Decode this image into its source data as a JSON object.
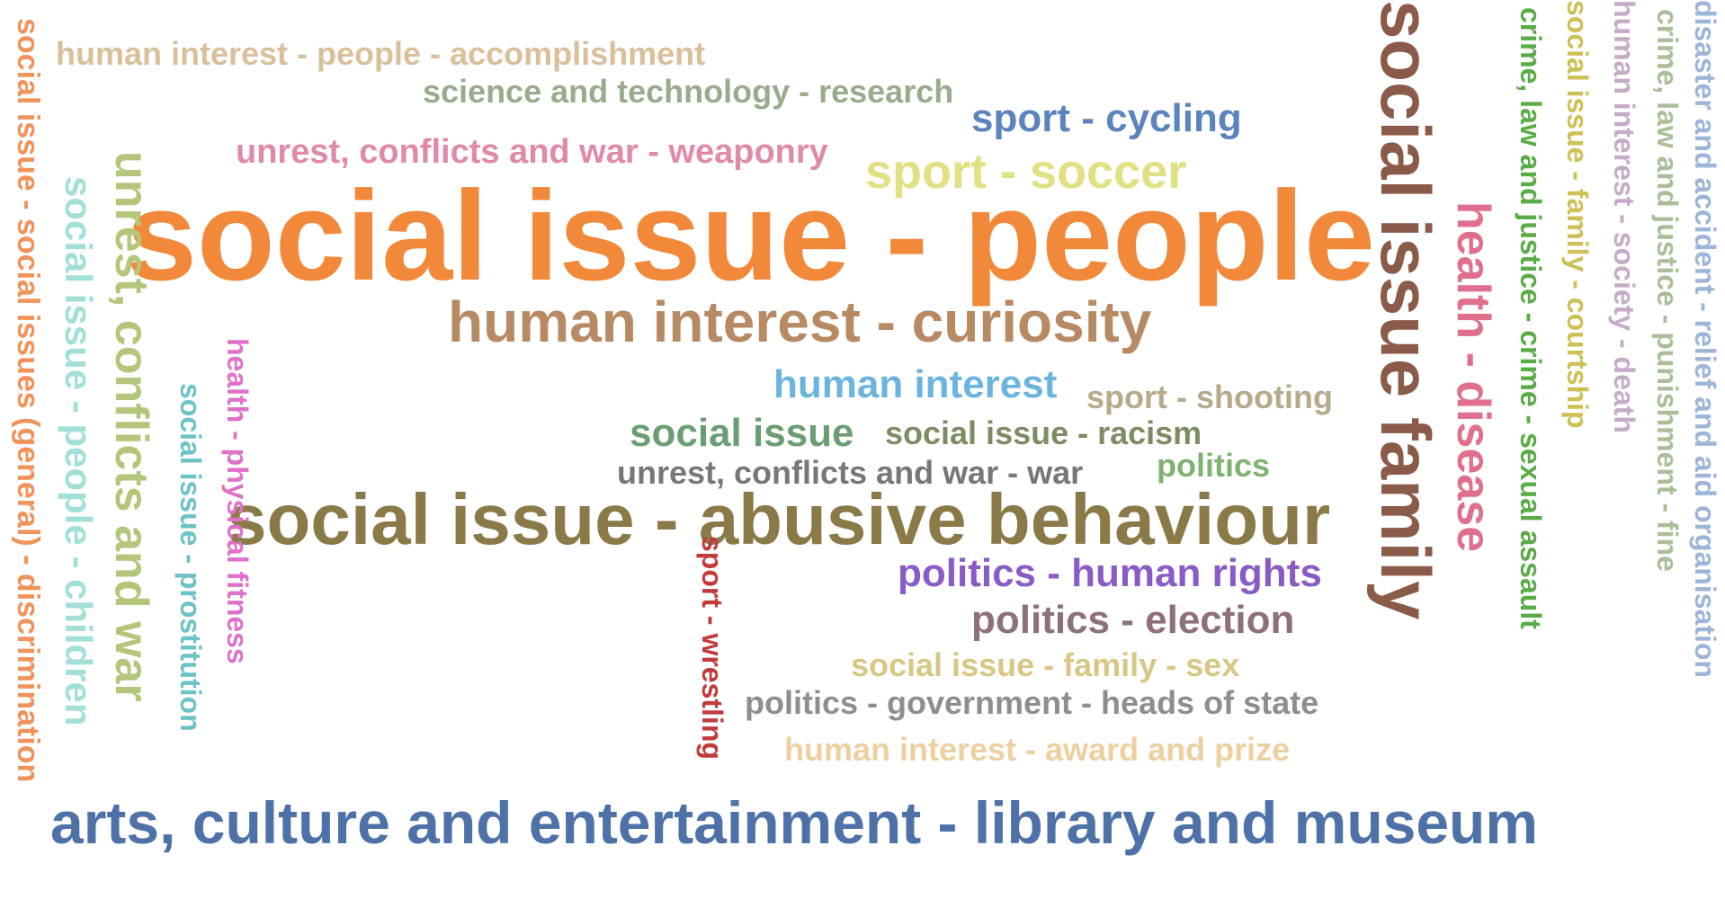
{
  "words": {
    "accomplishment": "human interest - people - accomplishment",
    "research": "science and technology - research",
    "cycling": "sport - cycling",
    "weaponry": "unrest, conflicts and war - weaponry",
    "soccer": "sport - soccer",
    "people": "social issue - people",
    "curiosity": "human interest - curiosity",
    "human": "human interest",
    "shooting": "sport - shooting",
    "socialissue": "social issue",
    "racism": "social issue - racism",
    "war": "unrest, conflicts and war - war",
    "politics": "politics",
    "abusive": "social issue - abusive behaviour",
    "humanrights": "politics - human rights",
    "election": "politics - election",
    "familysex": "social issue - family - sex",
    "heads": "politics - government - heads of state",
    "award": "human interest - award and prize",
    "library": "arts, culture and entertainment - library and museum",
    "discrimination": "social issue - social issues (general) - discrimination",
    "unrest": "unrest, conflicts and war",
    "children": "social issue - people - children",
    "prostitution": "social issue - prostitution",
    "fitness": "health - physical fitness",
    "wrestling": "sport - wrestling",
    "family": "social issue family",
    "disease": "health - disease",
    "assault": "crime, law and justice - crime - sexual assault",
    "courtship": "social issue - family - courtship",
    "death": "human interest - society - death",
    "fine": "crime, law and justice - punishment - fine",
    "relief": "disaster and accident - relief and aid organisation"
  },
  "colors": {
    "people": "#f2883a",
    "abusive": "#8a7a47",
    "library": "#4e72a8",
    "family": "#8a5b48",
    "curiosity": "#b78a64"
  }
}
